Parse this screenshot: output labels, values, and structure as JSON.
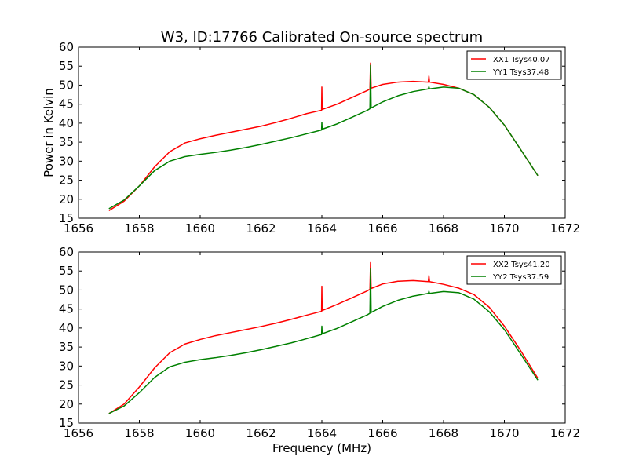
{
  "figure": {
    "title": "W3, ID:17766 Calibrated On-source spectrum",
    "xlabel": "Frequency (MHz)"
  },
  "chart_data": [
    {
      "type": "line",
      "title": "W3, ID:17766 Calibrated On-source spectrum",
      "xlabel": "",
      "ylabel": "Power in Kelvin",
      "xlim": [
        1656,
        1672
      ],
      "ylim": [
        15,
        60
      ],
      "xticks": [
        1656,
        1658,
        1660,
        1662,
        1664,
        1666,
        1668,
        1670,
        1672
      ],
      "yticks": [
        15,
        20,
        25,
        30,
        35,
        40,
        45,
        50,
        55,
        60
      ],
      "grid": false,
      "legend_position": "top-right",
      "series": [
        {
          "name": "XX1 Tsys40.07",
          "color": "#ff0000",
          "x": [
            1657.0,
            1657.5,
            1658.0,
            1658.5,
            1659.0,
            1659.5,
            1660.0,
            1660.5,
            1661.0,
            1661.5,
            1662.0,
            1662.5,
            1663.0,
            1663.5,
            1663.99,
            1664.0,
            1664.01,
            1664.5,
            1665.0,
            1665.5,
            1665.58,
            1665.6,
            1665.62,
            1666.0,
            1666.5,
            1667.0,
            1667.5,
            1667.52,
            1667.54,
            1668.0,
            1668.5,
            1669.0,
            1669.5,
            1670.0,
            1670.5,
            1671.1
          ],
          "y": [
            17.0,
            19.5,
            23.5,
            28.5,
            32.5,
            34.8,
            35.9,
            36.8,
            37.6,
            38.4,
            39.2,
            40.2,
            41.3,
            42.5,
            43.4,
            49.5,
            43.6,
            45.0,
            46.8,
            48.6,
            49.0,
            55.8,
            49.2,
            50.2,
            50.8,
            51.0,
            50.8,
            52.4,
            50.8,
            50.2,
            49.2,
            47.5,
            44.2,
            39.5,
            33.5,
            26.2
          ]
        },
        {
          "name": "YY1 Tsys37.48",
          "color": "#008000",
          "x": [
            1657.0,
            1657.5,
            1658.0,
            1658.5,
            1659.0,
            1659.5,
            1660.0,
            1660.5,
            1661.0,
            1661.5,
            1662.0,
            1662.5,
            1663.0,
            1663.5,
            1663.99,
            1664.0,
            1664.01,
            1664.5,
            1665.0,
            1665.5,
            1665.58,
            1665.6,
            1665.62,
            1666.0,
            1666.5,
            1667.0,
            1667.5,
            1667.52,
            1667.54,
            1668.0,
            1668.5,
            1669.0,
            1669.5,
            1670.0,
            1670.5,
            1671.1
          ],
          "y": [
            17.5,
            19.8,
            23.5,
            27.5,
            30.0,
            31.2,
            31.8,
            32.3,
            32.9,
            33.6,
            34.4,
            35.3,
            36.2,
            37.2,
            38.2,
            40.2,
            38.4,
            39.8,
            41.6,
            43.4,
            43.8,
            55.2,
            44.0,
            45.6,
            47.2,
            48.3,
            49.0,
            49.6,
            49.0,
            49.5,
            49.2,
            47.5,
            44.2,
            39.5,
            33.5,
            26.2
          ]
        }
      ]
    },
    {
      "type": "line",
      "title": "",
      "xlabel": "Frequency (MHz)",
      "ylabel": "",
      "xlim": [
        1656,
        1672
      ],
      "ylim": [
        15,
        60
      ],
      "xticks": [
        1656,
        1658,
        1660,
        1662,
        1664,
        1666,
        1668,
        1670,
        1672
      ],
      "yticks": [
        15,
        20,
        25,
        30,
        35,
        40,
        45,
        50,
        55,
        60
      ],
      "grid": false,
      "legend_position": "top-right",
      "series": [
        {
          "name": "XX2 Tsys41.20",
          "color": "#ff0000",
          "x": [
            1657.0,
            1657.5,
            1658.0,
            1658.5,
            1659.0,
            1659.5,
            1660.0,
            1660.5,
            1661.0,
            1661.5,
            1662.0,
            1662.5,
            1663.0,
            1663.5,
            1663.99,
            1664.0,
            1664.01,
            1664.5,
            1665.0,
            1665.5,
            1665.58,
            1665.6,
            1665.62,
            1666.0,
            1666.5,
            1667.0,
            1667.5,
            1667.52,
            1667.54,
            1668.0,
            1668.5,
            1669.0,
            1669.5,
            1670.0,
            1670.5,
            1671.1
          ],
          "y": [
            17.5,
            20.0,
            24.5,
            29.5,
            33.5,
            35.8,
            37.0,
            38.0,
            38.8,
            39.6,
            40.4,
            41.3,
            42.3,
            43.4,
            44.4,
            51.0,
            44.6,
            46.2,
            48.0,
            49.8,
            50.2,
            57.2,
            50.4,
            51.6,
            52.3,
            52.5,
            52.2,
            53.8,
            52.2,
            51.5,
            50.5,
            48.8,
            45.5,
            40.5,
            34.5,
            26.8
          ]
        },
        {
          "name": "YY2 Tsys37.59",
          "color": "#008000",
          "x": [
            1657.0,
            1657.5,
            1658.0,
            1658.5,
            1659.0,
            1659.5,
            1660.0,
            1660.5,
            1661.0,
            1661.5,
            1662.0,
            1662.5,
            1663.0,
            1663.5,
            1663.99,
            1664.0,
            1664.01,
            1664.5,
            1665.0,
            1665.5,
            1665.58,
            1665.6,
            1665.62,
            1666.0,
            1666.5,
            1667.0,
            1667.5,
            1667.52,
            1667.54,
            1668.0,
            1668.5,
            1669.0,
            1669.5,
            1670.0,
            1670.5,
            1671.1
          ],
          "y": [
            17.5,
            19.5,
            23.0,
            27.0,
            29.8,
            31.0,
            31.7,
            32.2,
            32.8,
            33.5,
            34.3,
            35.2,
            36.1,
            37.2,
            38.3,
            40.5,
            38.5,
            39.9,
            41.7,
            43.5,
            43.9,
            55.5,
            44.1,
            45.7,
            47.3,
            48.4,
            49.1,
            49.7,
            49.1,
            49.6,
            49.3,
            47.6,
            44.3,
            39.6,
            33.6,
            26.3
          ]
        }
      ]
    }
  ]
}
